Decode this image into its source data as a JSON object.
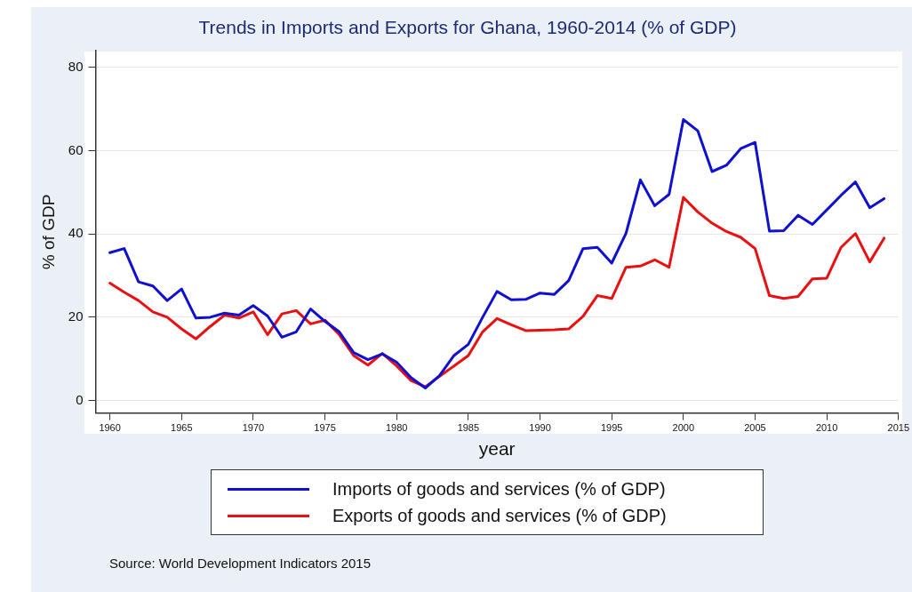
{
  "chart_data": {
    "type": "line",
    "title": "Trends in Imports and Exports for Ghana, 1960-2014 (% of GDP)",
    "xlabel": "year",
    "ylabel": "% of GDP",
    "x": [
      1960,
      1961,
      1962,
      1963,
      1964,
      1965,
      1966,
      1967,
      1968,
      1969,
      1970,
      1971,
      1972,
      1973,
      1974,
      1975,
      1976,
      1977,
      1978,
      1979,
      1980,
      1981,
      1982,
      1983,
      1984,
      1985,
      1986,
      1987,
      1988,
      1989,
      1990,
      1991,
      1992,
      1993,
      1994,
      1995,
      1996,
      1997,
      1998,
      1999,
      2000,
      2001,
      2002,
      2003,
      2004,
      2005,
      2006,
      2007,
      2008,
      2009,
      2010,
      2011,
      2012,
      2013,
      2014
    ],
    "series": [
      {
        "name": "Imports of goods and services (% of GDP)",
        "color": "#1010d0",
        "values": [
          35.5,
          36.5,
          28.5,
          27.5,
          24,
          26.8,
          19.8,
          20,
          21,
          20.5,
          22.8,
          20.3,
          15.2,
          16.5,
          22,
          19,
          16.5,
          11.5,
          9.8,
          11.2,
          9.2,
          5.5,
          3,
          6,
          10.8,
          13.5,
          20,
          26.2,
          24.2,
          24.3,
          25.8,
          25.5,
          28.8,
          36.5,
          36.8,
          33,
          40.2,
          53,
          46.8,
          49.5,
          67.5,
          64.8,
          55,
          56.5,
          60.5,
          62,
          40.7,
          40.8,
          44.5,
          42.3,
          45.8,
          49.3,
          52.5,
          46.3,
          48.5
        ]
      },
      {
        "name": "Exports of goods and services (% of GDP)",
        "color": "#e81010",
        "values": [
          28.2,
          26,
          24,
          21.3,
          20,
          17.2,
          14.8,
          17.8,
          20.5,
          19.8,
          21.3,
          15.8,
          20.8,
          21.6,
          18.4,
          19.3,
          15.8,
          10.8,
          8.5,
          11.3,
          8.3,
          4.8,
          3.3,
          5.8,
          8.3,
          10.8,
          16.5,
          19.7,
          18.2,
          16.8,
          16.9,
          17,
          17.2,
          20.2,
          25.2,
          24.5,
          32,
          32.3,
          33.8,
          32,
          48.8,
          45.3,
          42.6,
          40.6,
          39.2,
          36.5,
          25.2,
          24.5,
          25,
          29.2,
          29.4,
          36.8,
          40.1,
          33.3,
          39
        ]
      }
    ],
    "xlim": [
      1959,
      2015
    ],
    "xticks": [
      1960,
      1965,
      1970,
      1975,
      1980,
      1985,
      1990,
      1995,
      2000,
      2005,
      2010,
      2015
    ],
    "ylim": [
      -3,
      84
    ],
    "yticks": [
      0,
      20,
      40,
      60,
      80
    ],
    "grid": "y",
    "legend": "bottom",
    "marker": "none",
    "line_style": "solid",
    "annotations": [
      "Source: World Development Indicators 2015"
    ]
  }
}
